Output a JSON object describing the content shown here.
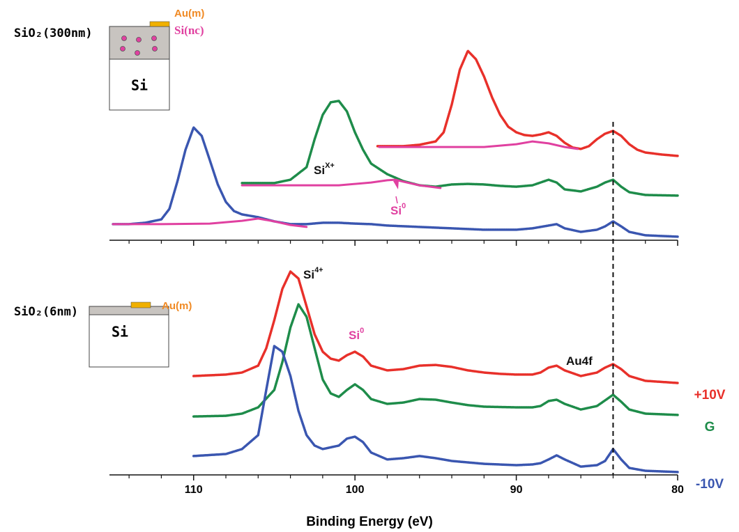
{
  "chart_data": [
    {
      "type": "line",
      "xlim": [
        115,
        80
      ],
      "ylim": [
        0,
        100
      ],
      "inset": {
        "layer": "SiO₂(300nm)",
        "metal": "Au(m)",
        "particles": "Si(nc)",
        "substrate": "Si"
      },
      "annotations": [
        {
          "text": "Si",
          "sup": "X+",
          "color": "#111111"
        },
        {
          "text": "Si",
          "sup": "0",
          "color": "#e040a0"
        }
      ],
      "series": [
        {
          "color": "#e8302a",
          "x": [
            98.6,
            97,
            96,
            95,
            94.5,
            94,
            93.5,
            93,
            92.5,
            92,
            91.5,
            91,
            90.5,
            90,
            89.5,
            89,
            88.5,
            88,
            87.5,
            87,
            86.5,
            86,
            85.5,
            85,
            84.5,
            84,
            83.5,
            83,
            82.5,
            82,
            81,
            80
          ],
          "values": [
            47.4,
            47.4,
            48.1,
            49.8,
            54.4,
            68.4,
            86.0,
            95.4,
            91.2,
            82.5,
            71.9,
            63.2,
            57.2,
            54.4,
            53.0,
            52.6,
            53.3,
            54.4,
            52.6,
            49.1,
            46.7,
            46.0,
            47.4,
            50.9,
            53.7,
            55.1,
            52.6,
            48.4,
            45.6,
            44.2,
            43.2,
            42.5
          ]
        },
        {
          "color": "#1e8c4a",
          "x": [
            107,
            105,
            104,
            103,
            102.5,
            102,
            101.5,
            101,
            100.5,
            100,
            99.5,
            99,
            98,
            97,
            96,
            95,
            94,
            93,
            92,
            91,
            90,
            89,
            88.5,
            88,
            87.5,
            87,
            86,
            85,
            84.5,
            84,
            83.5,
            83,
            82,
            80
          ],
          "values": [
            28.8,
            28.8,
            30.5,
            36.8,
            50.9,
            63.2,
            69.5,
            70.2,
            64.9,
            54.4,
            45.6,
            38.6,
            33.3,
            29.8,
            27.7,
            27.0,
            28.1,
            28.4,
            28.1,
            27.4,
            27.0,
            27.7,
            29.1,
            30.5,
            29.1,
            25.6,
            24.6,
            27.0,
            29.1,
            30.5,
            27.0,
            24.2,
            22.8,
            22.5
          ]
        },
        {
          "color": "#3a56b0",
          "x": [
            115,
            114,
            113,
            112,
            111.5,
            111,
            110.5,
            110,
            109.5,
            109,
            108.5,
            108,
            107.5,
            107,
            106.5,
            106,
            105,
            104,
            103,
            102,
            101,
            100,
            99,
            98,
            96,
            94,
            92,
            90,
            89,
            88,
            87.5,
            87,
            86,
            85,
            84.5,
            84,
            83.5,
            83,
            82,
            80
          ],
          "values": [
            8.1,
            8.1,
            8.8,
            10.5,
            15.8,
            29.8,
            45.6,
            56.8,
            52.6,
            40.4,
            28.1,
            19.3,
            14.7,
            13.0,
            12.3,
            11.6,
            9.5,
            8.1,
            8.1,
            8.8,
            8.8,
            8.4,
            8.1,
            7.4,
            6.7,
            6.0,
            5.3,
            5.3,
            6.0,
            7.4,
            8.1,
            6.0,
            4.2,
            5.3,
            7.0,
            9.5,
            7.0,
            4.2,
            2.5,
            1.8
          ]
        },
        {
          "color": "#e040a0",
          "style": "fit",
          "x": [
            115,
            112,
            109,
            107,
            106,
            105,
            104,
            103
          ],
          "values": [
            8.1,
            8.1,
            8.4,
            9.8,
            10.9,
            9.5,
            7.7,
            6.7
          ]
        },
        {
          "color": "#e040a0",
          "style": "fit",
          "x": [
            107,
            104,
            101,
            99,
            98,
            97.5,
            97,
            96,
            94.7
          ],
          "values": [
            27.7,
            27.7,
            27.7,
            29.1,
            30.2,
            30.5,
            29.5,
            27.7,
            26.3
          ]
        },
        {
          "color": "#e040a0",
          "style": "fit",
          "x": [
            98.5,
            95,
            92,
            90,
            89,
            88,
            87,
            86.2
          ],
          "values": [
            47.0,
            47.0,
            47.0,
            48.4,
            49.8,
            48.8,
            47.0,
            46.0
          ]
        }
      ]
    },
    {
      "type": "line",
      "xlim": [
        115,
        80
      ],
      "ylim": [
        0,
        100
      ],
      "xticks": [
        110,
        100,
        90,
        80
      ],
      "xminorticks": [
        114,
        112,
        108,
        106,
        104,
        102,
        98,
        96,
        94,
        92,
        88,
        86,
        84,
        82
      ],
      "xlabel": "Binding Energy (eV)",
      "reference_x": 84,
      "inset": {
        "layer": "SiO₂(6nm)",
        "metal": "Au(m)",
        "substrate": "Si"
      },
      "annotations": [
        {
          "text": "Si",
          "sup": "4+",
          "color": "#111111"
        },
        {
          "text": "Si",
          "sup": "0",
          "color": "#e040a0"
        },
        {
          "text": "Au4f",
          "color": "#111111"
        }
      ],
      "series": [
        {
          "name": "+10V",
          "color": "#e8302a",
          "x": [
            110,
            108,
            107,
            106,
            105.5,
            105,
            104.5,
            104,
            103.5,
            103,
            102.5,
            102,
            101.5,
            101,
            100.5,
            100,
            99.5,
            99,
            98,
            97,
            96,
            95,
            94,
            93,
            92,
            91,
            90,
            89,
            88.5,
            88,
            87.5,
            87,
            86,
            85,
            84.5,
            84,
            83.5,
            83,
            82,
            80
          ],
          "values": [
            45.5,
            46.2,
            47.1,
            50.3,
            58.3,
            71.2,
            85.6,
            93.6,
            90.4,
            77.6,
            64.7,
            56.7,
            53.5,
            52.6,
            55.1,
            56.7,
            54.5,
            50.3,
            48.1,
            48.7,
            50.3,
            50.6,
            49.7,
            48.1,
            47.1,
            46.5,
            46.2,
            46.2,
            47.1,
            49.4,
            50.3,
            48.1,
            45.5,
            47.1,
            49.4,
            51.0,
            48.7,
            45.5,
            43.3,
            42.3
          ]
        },
        {
          "name": "G",
          "color": "#1e8c4a",
          "x": [
            110,
            108,
            107,
            106,
            105,
            104.5,
            104,
            103.5,
            103,
            102.5,
            102,
            101.5,
            101,
            100.5,
            100,
            99.5,
            99,
            98,
            97,
            96,
            95,
            94,
            93,
            92,
            90,
            89,
            88.5,
            88,
            87.5,
            87,
            86,
            85,
            84.5,
            84,
            83.5,
            83,
            82,
            80
          ],
          "values": [
            26.9,
            27.2,
            28.2,
            31.1,
            39.1,
            51.9,
            67.9,
            78.5,
            72.8,
            58.3,
            43.9,
            37.5,
            35.9,
            39.1,
            41.7,
            39.1,
            34.9,
            32.7,
            33.3,
            34.9,
            34.6,
            33.3,
            32.1,
            31.4,
            31.1,
            31.1,
            31.7,
            34.0,
            34.6,
            32.7,
            30.1,
            31.7,
            34.3,
            36.9,
            33.7,
            30.1,
            28.2,
            27.6
          ]
        },
        {
          "name": "-10V",
          "color": "#3a56b0",
          "x": [
            110,
            108,
            107,
            106,
            105.5,
            105,
            104.5,
            104,
            103.5,
            103,
            102.5,
            102,
            101,
            100.5,
            100,
            99.5,
            99,
            98,
            97,
            96,
            95,
            94,
            92,
            90,
            89,
            88.5,
            88,
            87.5,
            87,
            86,
            85,
            84.5,
            84,
            83.5,
            83,
            82,
            80
          ],
          "values": [
            8.7,
            9.6,
            11.9,
            18.3,
            39.1,
            59.3,
            56.7,
            45.5,
            29.5,
            18.3,
            13.5,
            11.9,
            13.5,
            16.7,
            17.6,
            15.1,
            10.3,
            7.1,
            7.7,
            8.7,
            7.7,
            6.4,
            5.1,
            4.5,
            4.8,
            5.4,
            7.1,
            9.0,
            7.1,
            3.8,
            4.5,
            6.4,
            11.9,
            7.1,
            3.2,
            1.9,
            1.3
          ]
        }
      ]
    }
  ]
}
